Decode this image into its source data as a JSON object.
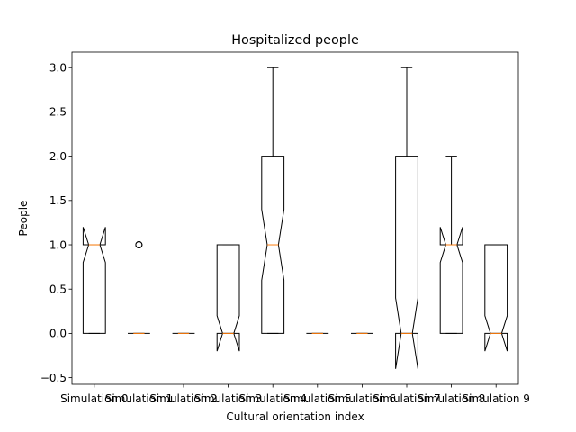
{
  "chart_data": {
    "type": "boxplot",
    "title": "Hospitalized people",
    "xlabel": "Cultural orientation index",
    "ylabel": "People",
    "ylim": [
      -0.575,
      3.175
    ],
    "yticks": [
      -0.5,
      0.0,
      0.5,
      1.0,
      1.5,
      2.0,
      2.5,
      3.0
    ],
    "ytick_labels": [
      "−0.5",
      "0.0",
      "0.5",
      "1.0",
      "1.5",
      "2.0",
      "2.5",
      "3.0"
    ],
    "notched": true,
    "grid": false,
    "categories": [
      "Simulation 0",
      "Simulation 1",
      "Simulation 2",
      "Simulation 3",
      "Simulation 4",
      "Simulation 5",
      "Simulation 6",
      "Simulation 7",
      "Simulation 8",
      "Simulation 9"
    ],
    "boxes": [
      {
        "q1": 0,
        "median": 1,
        "q3": 1,
        "whisker_low": 0,
        "whisker_high": 1,
        "notch_low": 0.8,
        "notch_high": 1.2,
        "outliers": []
      },
      {
        "q1": 0,
        "median": 0,
        "q3": 0,
        "whisker_low": 0,
        "whisker_high": 0,
        "notch_low": 0,
        "notch_high": 0,
        "outliers": [
          1,
          1
        ]
      },
      {
        "q1": 0,
        "median": 0,
        "q3": 0,
        "whisker_low": 0,
        "whisker_high": 0,
        "notch_low": 0,
        "notch_high": 0,
        "outliers": []
      },
      {
        "q1": 0,
        "median": 0,
        "q3": 1,
        "whisker_low": 0,
        "whisker_high": 1,
        "notch_low": -0.2,
        "notch_high": 0.2,
        "outliers": []
      },
      {
        "q1": 0,
        "median": 1,
        "q3": 2,
        "whisker_low": 0,
        "whisker_high": 3,
        "notch_low": 0.6,
        "notch_high": 1.4,
        "outliers": []
      },
      {
        "q1": 0,
        "median": 0,
        "q3": 0,
        "whisker_low": 0,
        "whisker_high": 0,
        "notch_low": 0,
        "notch_high": 0,
        "outliers": []
      },
      {
        "q1": 0,
        "median": 0,
        "q3": 0,
        "whisker_low": 0,
        "whisker_high": 0,
        "notch_low": 0,
        "notch_high": 0,
        "outliers": []
      },
      {
        "q1": 0,
        "median": 0,
        "q3": 2,
        "whisker_low": 0,
        "whisker_high": 3,
        "notch_low": -0.4,
        "notch_high": 0.4,
        "outliers": []
      },
      {
        "q1": 0,
        "median": 1,
        "q3": 1,
        "whisker_low": 0,
        "whisker_high": 2,
        "notch_low": 0.8,
        "notch_high": 1.2,
        "outliers": []
      },
      {
        "q1": 0,
        "median": 0,
        "q3": 1,
        "whisker_low": 0,
        "whisker_high": 1,
        "notch_low": -0.2,
        "notch_high": 0.2,
        "outliers": []
      }
    ],
    "colors": {
      "box": "#000000",
      "median": "#ff7f0e",
      "outlier": "#000000"
    }
  }
}
